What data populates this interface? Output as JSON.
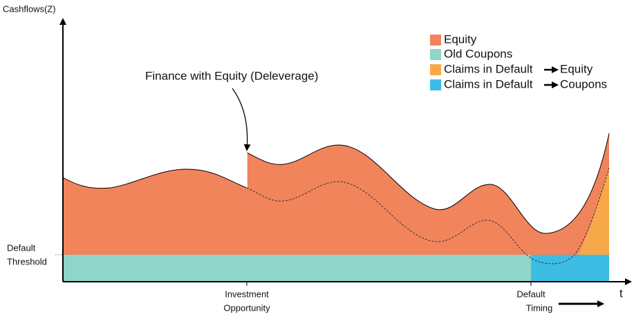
{
  "axes": {
    "y_label": "Cashflows(Z)",
    "x_label": "t",
    "threshold_label": [
      "Default",
      "Threshold"
    ],
    "investment_label": [
      "Investment",
      "Opportunity"
    ],
    "default_label": [
      "Default",
      "Timing"
    ]
  },
  "callout": "Finance with Equity (Deleverage)",
  "legend": [
    {
      "label": "Equity",
      "color": "#f2845c"
    },
    {
      "label": "Old Coupons",
      "color": "#8fd6c8"
    },
    {
      "label": "Claims in Default",
      "target": "Equity",
      "color": "#f7a94a"
    },
    {
      "label": "Claims in Default",
      "target": "Coupons",
      "color": "#3dbde4"
    }
  ]
}
